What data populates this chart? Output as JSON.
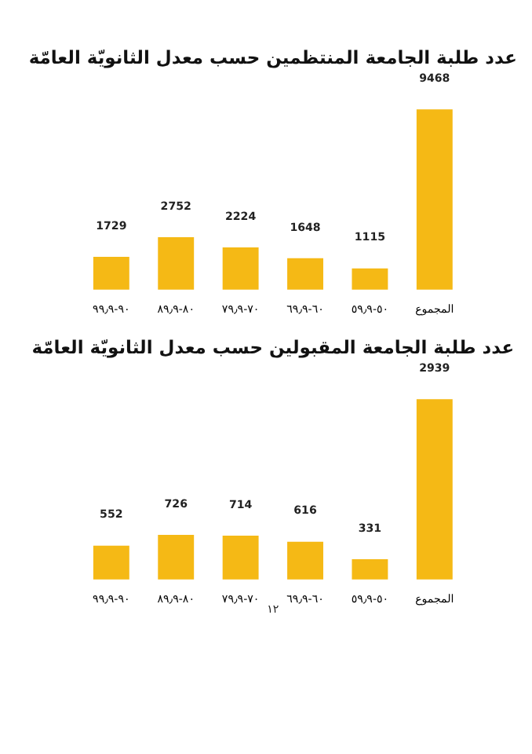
{
  "chart_data": [
    {
      "type": "bar",
      "title": "عدد طلبة الجامعة المنتظمين حسب معدل الثانويّة العامّة",
      "categories": [
        "٩٠-٩٩٫٩",
        "٨٠-٨٩٫٩",
        "٧٠-٧٩٫٩",
        "٦٠-٦٩٫٩",
        "٥٠-٥٩٫٩",
        "المجموع"
      ],
      "values": [
        1729,
        2752,
        2224,
        1648,
        1115,
        9468
      ],
      "color": "#f5b915",
      "data_labels": true,
      "grid": false
    },
    {
      "type": "bar",
      "title": "عدد طلبة الجامعة المقبولين حسب معدل الثانويّة العامّة",
      "categories": [
        "٩٠-٩٩٫٩",
        "٨٠-٨٩٫٩",
        "٧٠-٧٩٫٩",
        "٦٠-٦٩٫٩",
        "٥٠-٥٩٫٩",
        "المجموع"
      ],
      "values": [
        552,
        726,
        714,
        616,
        331,
        2939
      ],
      "color": "#f5b915",
      "data_labels": true,
      "grid": false,
      "annotations": [
        "١٢"
      ]
    }
  ]
}
